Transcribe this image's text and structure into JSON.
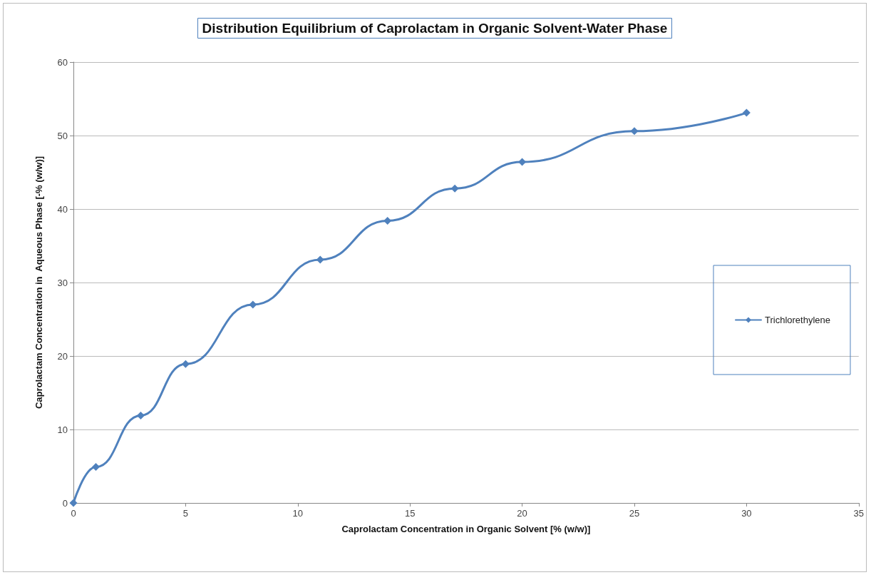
{
  "chart_data": {
    "type": "line",
    "title": "Distribution Equilibrium of Caprolactam in Organic Solvent-Water Phase",
    "xlabel": "Caprolactam Concentration in Organic Solvent [% (w/w)]",
    "ylabel": "Caprolactam Concentration in  Aqueous Phase [-% (w/w)]",
    "x": [
      0,
      1,
      3,
      5,
      8,
      11,
      14,
      17,
      20,
      25,
      30
    ],
    "series": [
      {
        "name": "Trichlorethylene",
        "color": "#4f81bd",
        "values": [
          0,
          4.9,
          11.9,
          18.9,
          27.0,
          33.1,
          38.4,
          42.8,
          46.4,
          50.6,
          53.1
        ]
      }
    ],
    "xlim": [
      0,
      35
    ],
    "xticks": [
      0,
      5,
      10,
      15,
      20,
      25,
      30,
      35
    ],
    "ylim": [
      0,
      60
    ],
    "yticks": [
      0,
      10,
      20,
      30,
      40,
      50,
      60
    ],
    "grid": "y",
    "legend": "right",
    "marker": "diamond",
    "line_style": "solid"
  }
}
